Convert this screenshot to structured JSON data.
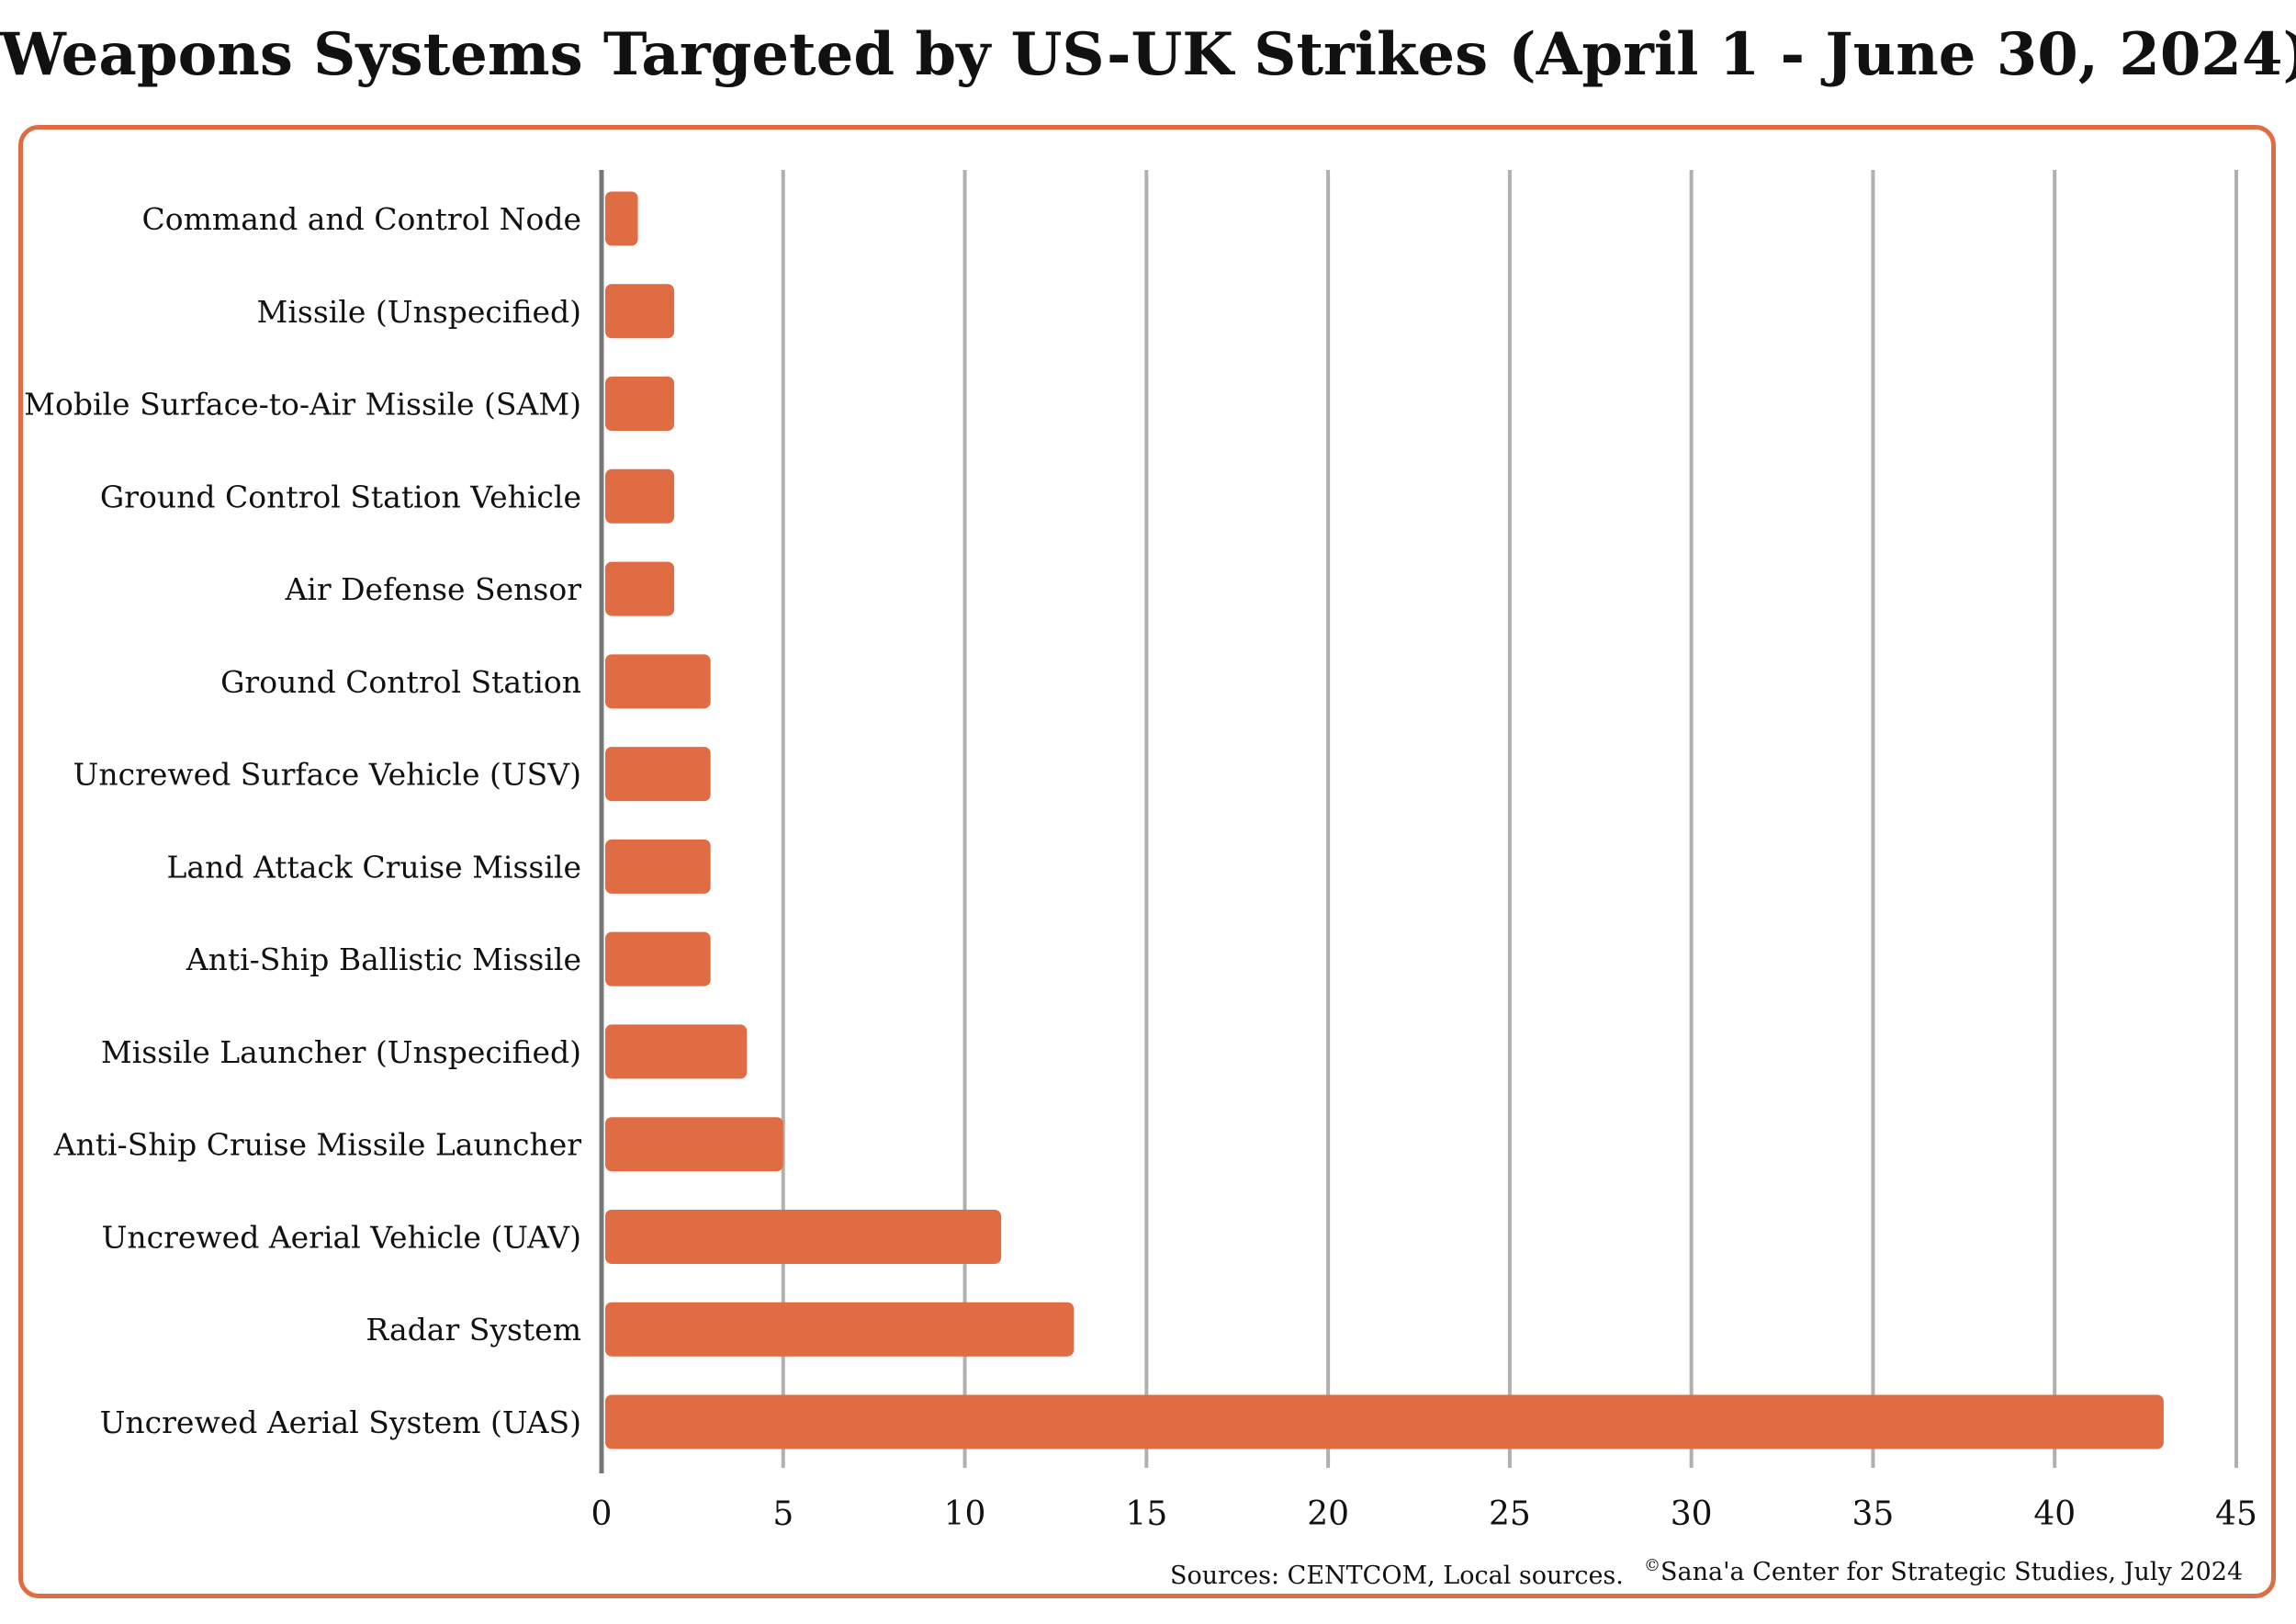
{
  "chart_data": {
    "type": "bar",
    "orientation": "horizontal",
    "title": "Weapons Systems Targeted by US-UK Strikes (April 1 - June 30, 2024)",
    "categories": [
      "Command and Control Node",
      "Missile (Unspecified)",
      "Mobile Surface-to-Air Missile (SAM)",
      "Ground Control Station Vehicle",
      "Air Defense Sensor",
      "Ground Control Station",
      "Uncrewed Surface Vehicle (USV)",
      "Land Attack Cruise Missile",
      "Anti-Ship Ballistic Missile",
      "Missile Launcher (Unspecified)",
      "Anti-Ship Cruise Missile Launcher",
      "Uncrewed Aerial Vehicle (UAV)",
      "Radar System",
      "Uncrewed Aerial System (UAS)"
    ],
    "values": [
      1,
      2,
      2,
      2,
      2,
      3,
      3,
      3,
      3,
      4,
      5,
      11,
      13,
      43
    ],
    "xlim": [
      0,
      45
    ],
    "xticks": [
      "0",
      "5",
      "10",
      "15",
      "20",
      "25",
      "30",
      "35",
      "40",
      "45"
    ],
    "xlabel": "",
    "ylabel": "",
    "grid": "vertical",
    "legend": "none",
    "bar_color": "#e06c43",
    "grid_color": "#b0b0b0",
    "axis_color": "#777777",
    "frame_color": "#e06c43"
  },
  "footer": {
    "source": "Sources: CENTCOM, Local sources.",
    "copyright_symbol": "©",
    "copyright": "Sana'a Center for Strategic Studies, July 2024"
  }
}
